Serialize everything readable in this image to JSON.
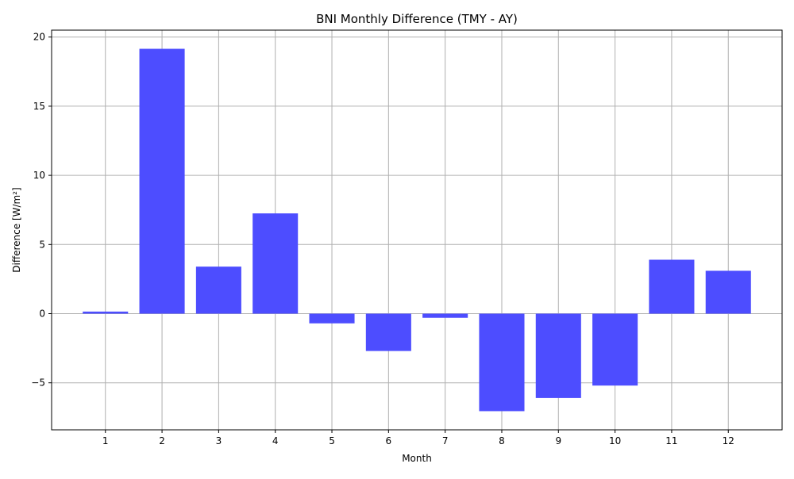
{
  "chart_data": {
    "type": "bar",
    "title": "BNI Monthly Difference (TMY - AY)",
    "xlabel": "Month",
    "ylabel": "Difference [W/m²]",
    "categories": [
      "1",
      "2",
      "3",
      "4",
      "5",
      "6",
      "7",
      "8",
      "9",
      "10",
      "11",
      "12"
    ],
    "values": [
      0.15,
      19.15,
      3.4,
      7.25,
      -0.7,
      -2.7,
      -0.3,
      -7.05,
      -6.1,
      -5.2,
      3.9,
      3.1
    ],
    "ylim": [
      -8.4,
      20.5
    ],
    "yticks": [
      -5,
      0,
      5,
      10,
      15,
      20
    ],
    "ytick_labels": [
      "−5",
      "0",
      "5",
      "10",
      "15",
      "20"
    ],
    "grid": true,
    "colors": {
      "bar": "#4d4dff",
      "grid": "#b0b0b0"
    }
  }
}
